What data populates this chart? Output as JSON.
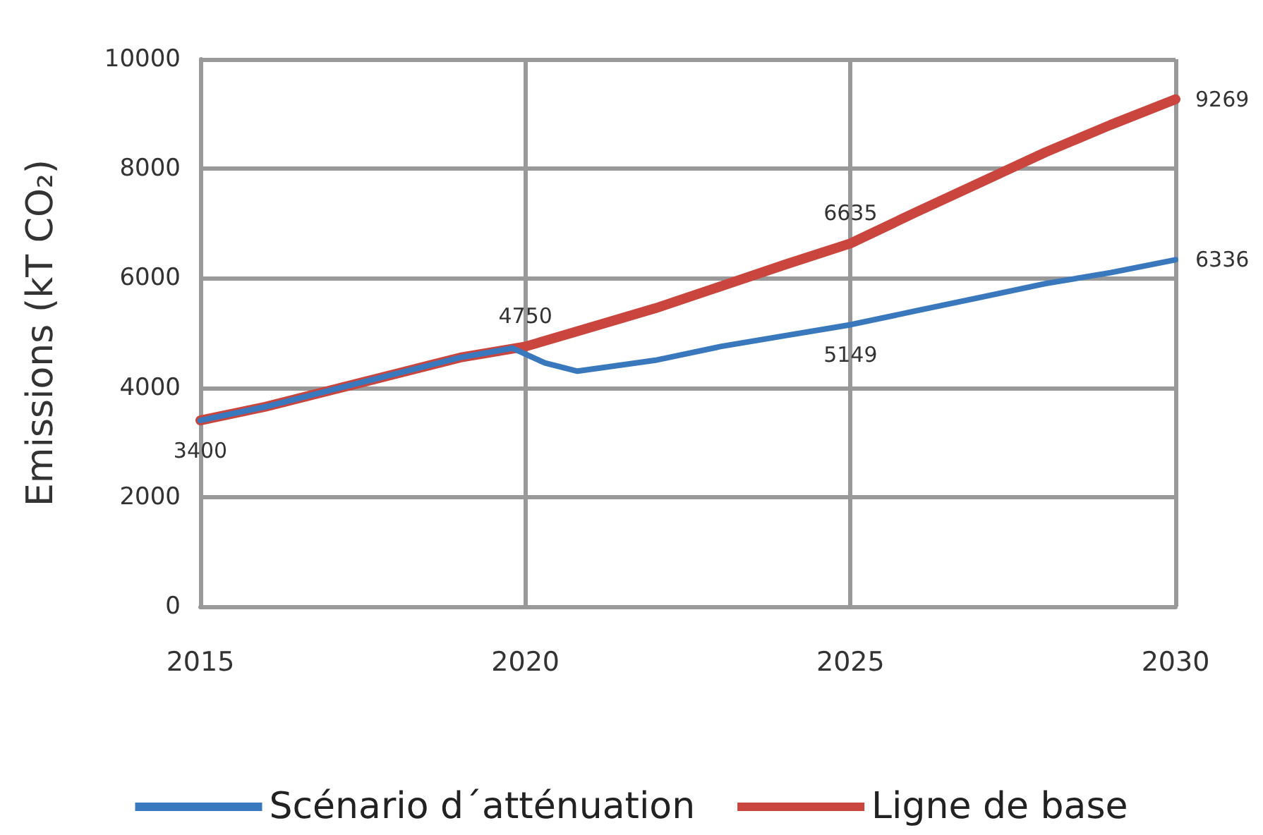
{
  "chart_data": {
    "type": "line",
    "ylabel": "Emissions (kT CO₂)",
    "xlim": [
      2015,
      2030
    ],
    "xticks": [
      2015,
      2020,
      2025,
      2030
    ],
    "ylim": [
      0,
      10000
    ],
    "yticks": [
      0,
      2000,
      4000,
      6000,
      8000,
      10000
    ],
    "grid": true,
    "legend": "bottom",
    "marker": "none",
    "line_style": "solid",
    "series": [
      {
        "name": "Scénario d´atténuation",
        "color": "#3a78bd",
        "x": [
          2015,
          2016,
          2017,
          2018,
          2019,
          2019.8,
          2020.3,
          2020.8,
          2022,
          2023,
          2024,
          2025,
          2026,
          2027,
          2028,
          2029,
          2030
        ],
        "values": [
          3400,
          3650,
          3950,
          4250,
          4550,
          4720,
          4450,
          4300,
          4500,
          4750,
          4950,
          5149,
          5400,
          5650,
          5900,
          6100,
          6336
        ],
        "value_labels": [
          "3400",
          null,
          null,
          null,
          null,
          null,
          null,
          null,
          null,
          null,
          null,
          "5149",
          null,
          null,
          null,
          null,
          "6336"
        ]
      },
      {
        "name": "Ligne de base",
        "color": "#c9453d",
        "x": [
          2015,
          2016,
          2017,
          2018,
          2019,
          2020,
          2021,
          2022,
          2023,
          2024,
          2025,
          2026,
          2027,
          2028,
          2029,
          2030
        ],
        "values": [
          3400,
          3650,
          3950,
          4250,
          4550,
          4750,
          5100,
          5450,
          5850,
          6250,
          6635,
          7200,
          7750,
          8300,
          8800,
          9269
        ],
        "value_labels": [
          null,
          null,
          null,
          null,
          null,
          "4750",
          null,
          null,
          null,
          null,
          "6635",
          null,
          null,
          null,
          null,
          "9269"
        ]
      }
    ]
  }
}
